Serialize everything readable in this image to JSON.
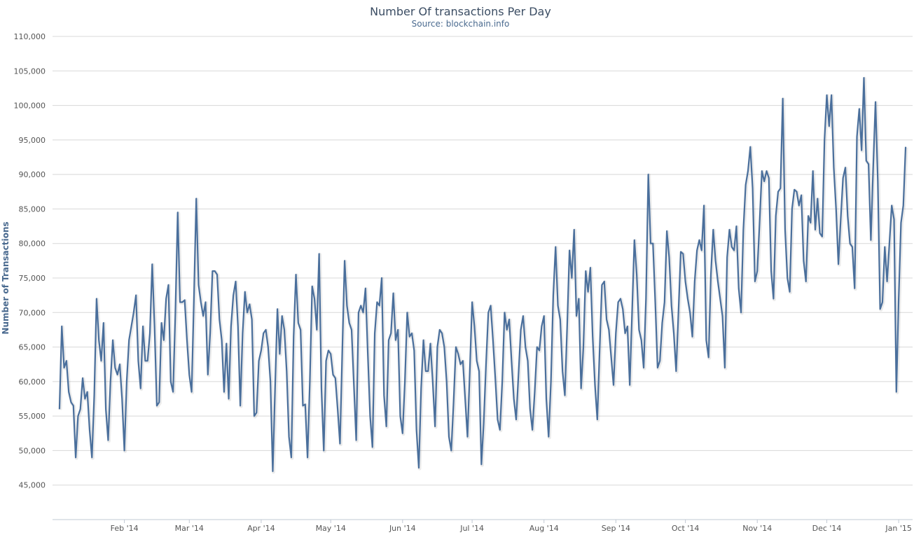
{
  "chart_data": {
    "type": "line",
    "title": "Number Of transactions Per Day",
    "subtitle": "Source: blockchain.info",
    "ylabel": "Number of Transactions",
    "xlabel": "",
    "ylim": [
      40000,
      110000
    ],
    "yticks": [
      45000,
      50000,
      55000,
      60000,
      65000,
      70000,
      75000,
      80000,
      85000,
      90000,
      95000,
      100000,
      105000,
      110000
    ],
    "ytick_labels": [
      "45,000",
      "50,000",
      "55,000",
      "60,000",
      "65,000",
      "70,000",
      "75,000",
      "80,000",
      "85,000",
      "90,000",
      "95,000",
      "100,000",
      "105,000",
      "110,000"
    ],
    "grid": true,
    "legend": "none",
    "xlim": [
      "2014-01-01",
      "2015-01-07"
    ],
    "x_ticks": [
      {
        "label": "Feb '14",
        "date": "2014-02-01"
      },
      {
        "label": "Mar '14",
        "date": "2014-03-01"
      },
      {
        "label": "Apr '14",
        "date": "2014-04-01"
      },
      {
        "label": "May '14",
        "date": "2014-05-01"
      },
      {
        "label": "Jun '14",
        "date": "2014-06-01"
      },
      {
        "label": "Jul '14",
        "date": "2014-07-01"
      },
      {
        "label": "Aug '14",
        "date": "2014-08-01"
      },
      {
        "label": "Sep '14",
        "date": "2014-09-01"
      },
      {
        "label": "Oct '14",
        "date": "2014-10-01"
      },
      {
        "label": "Nov '14",
        "date": "2014-11-01"
      },
      {
        "label": "Dec '14",
        "date": "2014-12-01"
      },
      {
        "label": "Jan '15",
        "date": "2015-01-01"
      }
    ],
    "series_color": "#4a6f9c",
    "series": [
      {
        "x_start": "2014-01-04",
        "x_step_days": 1,
        "values": [
          56000,
          68000,
          62000,
          63000,
          58500,
          57000,
          56500,
          49000,
          55000,
          56000,
          60500,
          57500,
          58500,
          53000,
          49000,
          58000,
          72000,
          66000,
          63000,
          68500,
          56000,
          51500,
          60000,
          66000,
          62000,
          61000,
          62500,
          57500,
          50000,
          60000,
          66000,
          68000,
          70000,
          72500,
          63000,
          59000,
          68000,
          63000,
          63000,
          67000,
          77000,
          68000,
          56500,
          57000,
          68500,
          66000,
          72000,
          74000,
          60000,
          58500,
          70000,
          84500,
          71500,
          71500,
          71800,
          66000,
          61000,
          58500,
          72000,
          86500,
          74000,
          71500,
          69500,
          71500,
          61000,
          67000,
          76000,
          76000,
          75500,
          69000,
          66000,
          58500,
          65500,
          57500,
          68000,
          72500,
          74500,
          68000,
          56500,
          67000,
          73000,
          70000,
          71200,
          69000,
          55000,
          55500,
          63000,
          64500,
          67000,
          67500,
          65000,
          60000,
          47000,
          59000,
          70500,
          64000,
          69500,
          67500,
          61500,
          52000,
          49000,
          66500,
          75500,
          68500,
          67500,
          56500,
          56700,
          49000,
          60000,
          73800,
          72000,
          67500,
          78500,
          59000,
          50000,
          63000,
          64500,
          64000,
          61000,
          60500,
          56000,
          51000,
          64500,
          77500,
          71000,
          68500,
          67500,
          59500,
          51500,
          70000,
          71000,
          70000,
          73500,
          64000,
          55000,
          50500,
          67000,
          71500,
          71000,
          75000,
          58000,
          53500,
          66000,
          67000,
          72800,
          66000,
          67500,
          55000,
          52500,
          60000,
          70000,
          66500,
          67000,
          64500,
          53000,
          47500,
          59000,
          66000,
          61500,
          61500,
          65500,
          60000,
          53500,
          65000,
          67500,
          67000,
          65000,
          60000,
          52000,
          50000,
          57000,
          65000,
          64000,
          62500,
          63000,
          57500,
          52000,
          61500,
          71500,
          68000,
          63000,
          61500,
          48000,
          54000,
          62500,
          70000,
          71000,
          66000,
          60500,
          54500,
          53000,
          60000,
          70000,
          67500,
          69000,
          63000,
          57500,
          54500,
          61000,
          67500,
          69500,
          65000,
          63000,
          56000,
          53000,
          58500,
          65000,
          64500,
          68000,
          69500,
          57500,
          52000,
          60000,
          72500,
          79500,
          71000,
          69000,
          61500,
          58000,
          68000,
          79000,
          75000,
          82000,
          69500,
          72000,
          59000,
          65000,
          76000,
          73000,
          76500,
          66500,
          59500,
          54500,
          64500,
          74000,
          74500,
          69000,
          67500,
          63500,
          59500,
          67000,
          71500,
          72000,
          70500,
          67000,
          68000,
          59500,
          70000,
          80500,
          75500,
          67500,
          66000,
          62000,
          72000,
          90000,
          80000,
          80000,
          71500,
          62000,
          63000,
          68500,
          71500,
          81800,
          78000,
          71000,
          67000,
          61500,
          70000,
          78800,
          78500,
          74500,
          72000,
          70000,
          66500,
          74500,
          79000,
          80500,
          79000,
          85500,
          66000,
          63500,
          75500,
          82000,
          77500,
          74500,
          72000,
          69500,
          62000,
          78000,
          82000,
          79500,
          79000,
          82500,
          73500,
          70000,
          82000,
          88500,
          90500,
          94000,
          88000,
          74500,
          76000,
          83000,
          90500,
          89000,
          90500,
          89500,
          76000,
          72000,
          84000,
          87500,
          88000,
          101000,
          82000,
          75000,
          73000,
          85000,
          87800,
          87500,
          85500,
          87000,
          77500,
          74500,
          84000,
          83000,
          90500,
          82000,
          86500,
          81500,
          81000,
          95000,
          101500,
          97000,
          101500,
          91000,
          85000,
          77000,
          83500,
          89500,
          91000,
          84000,
          80000,
          79500,
          73500,
          95500,
          99500,
          93500,
          104000,
          92000,
          91500,
          80500,
          91000,
          100500,
          89000,
          70500,
          71500,
          79500,
          74500,
          80000,
          85500,
          83500,
          58500,
          72000,
          83000,
          85500,
          94000
        ]
      }
    ]
  }
}
